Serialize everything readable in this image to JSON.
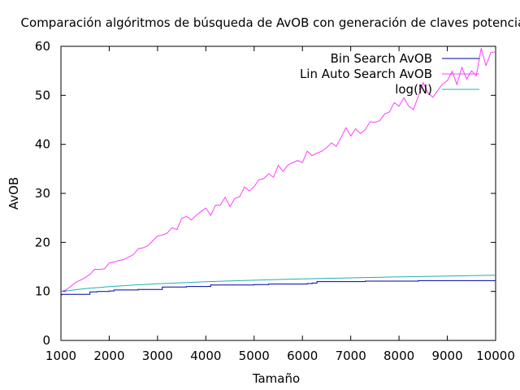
{
  "chart_data": {
    "type": "line",
    "title": "Comparación algóritmos de búsqueda de AvOB con generación de claves potencial",
    "xlabel": "Tamaño",
    "ylabel": "AvOB",
    "xlim": [
      1000,
      10000
    ],
    "ylim": [
      0,
      60
    ],
    "xticks": [
      1000,
      2000,
      3000,
      4000,
      5000,
      6000,
      7000,
      8000,
      9000,
      10000
    ],
    "yticks": [
      0,
      10,
      20,
      30,
      40,
      50,
      60
    ],
    "grid": false,
    "legend_position": "top-right",
    "series": [
      {
        "name": "Bin Search AvOB",
        "color": "#0000a0",
        "style": "step",
        "x": [
          1000,
          1020,
          1500,
          1600,
          1750,
          2000,
          2100,
          2500,
          2600,
          3000,
          3100,
          3500,
          3600,
          4000,
          4100,
          4900,
          5000,
          5200,
          5300,
          6000,
          6100,
          6200,
          6300,
          6900,
          7000,
          7200,
          7300,
          8000,
          8100,
          8300,
          8400,
          9900,
          10000
        ],
        "values": [
          9.3,
          9.4,
          9.4,
          9.9,
          10.0,
          10.1,
          10.3,
          10.3,
          10.4,
          10.4,
          10.9,
          10.9,
          11.0,
          11.0,
          11.3,
          11.3,
          11.4,
          11.4,
          11.5,
          11.5,
          11.6,
          11.7,
          12.0,
          12.0,
          12.0,
          12.0,
          12.1,
          12.1,
          12.1,
          12.1,
          12.2,
          12.2,
          12.3
        ]
      },
      {
        "name": "Lin Auto Search AvOB",
        "color": "#ff3dff",
        "style": "line",
        "x": [
          1000,
          1100,
          1200,
          1300,
          1400,
          1500,
          1600,
          1700,
          1800,
          1900,
          2000,
          2100,
          2200,
          2300,
          2400,
          2500,
          2600,
          2700,
          2800,
          2900,
          3000,
          3100,
          3200,
          3300,
          3400,
          3500,
          3600,
          3700,
          3800,
          3900,
          4000,
          4100,
          4200,
          4300,
          4400,
          4500,
          4600,
          4700,
          4800,
          4900,
          5000,
          5100,
          5200,
          5300,
          5400,
          5500,
          5600,
          5700,
          5800,
          5900,
          6000,
          6100,
          6200,
          6300,
          6400,
          6500,
          6600,
          6700,
          6800,
          6900,
          7000,
          7100,
          7200,
          7300,
          7400,
          7500,
          7600,
          7700,
          7800,
          7900,
          8000,
          8100,
          8200,
          8300,
          8400,
          8500,
          8600,
          8700,
          8800,
          8900,
          9000,
          9100,
          9200,
          9300,
          9400,
          9500,
          9600,
          9700,
          9800,
          9900,
          10000
        ],
        "values": [
          10.0,
          10.3,
          11.0,
          11.8,
          12.3,
          12.8,
          13.5,
          14.5,
          14.5,
          14.6,
          15.8,
          16.0,
          16.3,
          16.5,
          17.0,
          17.5,
          18.7,
          18.9,
          19.3,
          20.3,
          21.3,
          21.5,
          21.9,
          23.0,
          22.6,
          24.9,
          25.3,
          24.6,
          25.5,
          26.3,
          27.0,
          25.5,
          27.6,
          27.6,
          29.2,
          27.3,
          29.0,
          29.3,
          31.3,
          30.5,
          31.4,
          32.8,
          33.0,
          34.0,
          33.3,
          35.7,
          34.5,
          35.8,
          36.3,
          36.7,
          36.3,
          38.6,
          37.7,
          38.2,
          38.6,
          39.3,
          40.3,
          39.6,
          41.4,
          43.4,
          41.7,
          43.2,
          42.2,
          43.0,
          44.6,
          44.5,
          44.8,
          46.2,
          46.6,
          48.5,
          47.8,
          49.5,
          47.8,
          47.1,
          49.8,
          52.6,
          50.5,
          49.6,
          51.0,
          52.3,
          53.0,
          54.9,
          52.2,
          55.7,
          53.3,
          55.0,
          54.0,
          59.6,
          56.1,
          58.7,
          58.9
        ]
      },
      {
        "name": "log(N)",
        "color": "#20b0b0",
        "style": "line",
        "x": [
          1000,
          1500,
          2000,
          2500,
          3000,
          3500,
          4000,
          4500,
          5000,
          5500,
          6000,
          6500,
          7000,
          7500,
          8000,
          8500,
          9000,
          9500,
          10000
        ],
        "values": [
          9.97,
          10.55,
          10.97,
          11.29,
          11.55,
          11.77,
          11.97,
          12.14,
          12.29,
          12.43,
          12.55,
          12.67,
          12.77,
          12.87,
          12.97,
          13.05,
          13.14,
          13.21,
          13.29
        ]
      }
    ]
  }
}
